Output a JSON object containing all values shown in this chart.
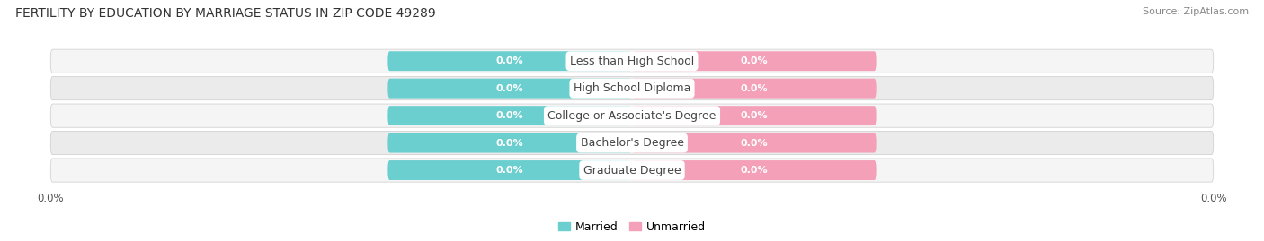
{
  "title": "FERTILITY BY EDUCATION BY MARRIAGE STATUS IN ZIP CODE 49289",
  "source": "Source: ZipAtlas.com",
  "categories": [
    "Less than High School",
    "High School Diploma",
    "College or Associate's Degree",
    "Bachelor's Degree",
    "Graduate Degree"
  ],
  "married_values": [
    0.0,
    0.0,
    0.0,
    0.0,
    0.0
  ],
  "unmarried_values": [
    0.0,
    0.0,
    0.0,
    0.0,
    0.0
  ],
  "married_color": "#6bcfcf",
  "unmarried_color": "#f4a0b8",
  "row_bg_light": "#f5f5f5",
  "row_bg_dark": "#ebebeb",
  "title_fontsize": 10,
  "source_fontsize": 8,
  "legend_fontsize": 9,
  "value_fontsize": 8,
  "cat_fontsize": 9,
  "tick_fontsize": 8.5,
  "background_color": "#ffffff",
  "text_color": "#555555",
  "cat_text_color": "#444444"
}
